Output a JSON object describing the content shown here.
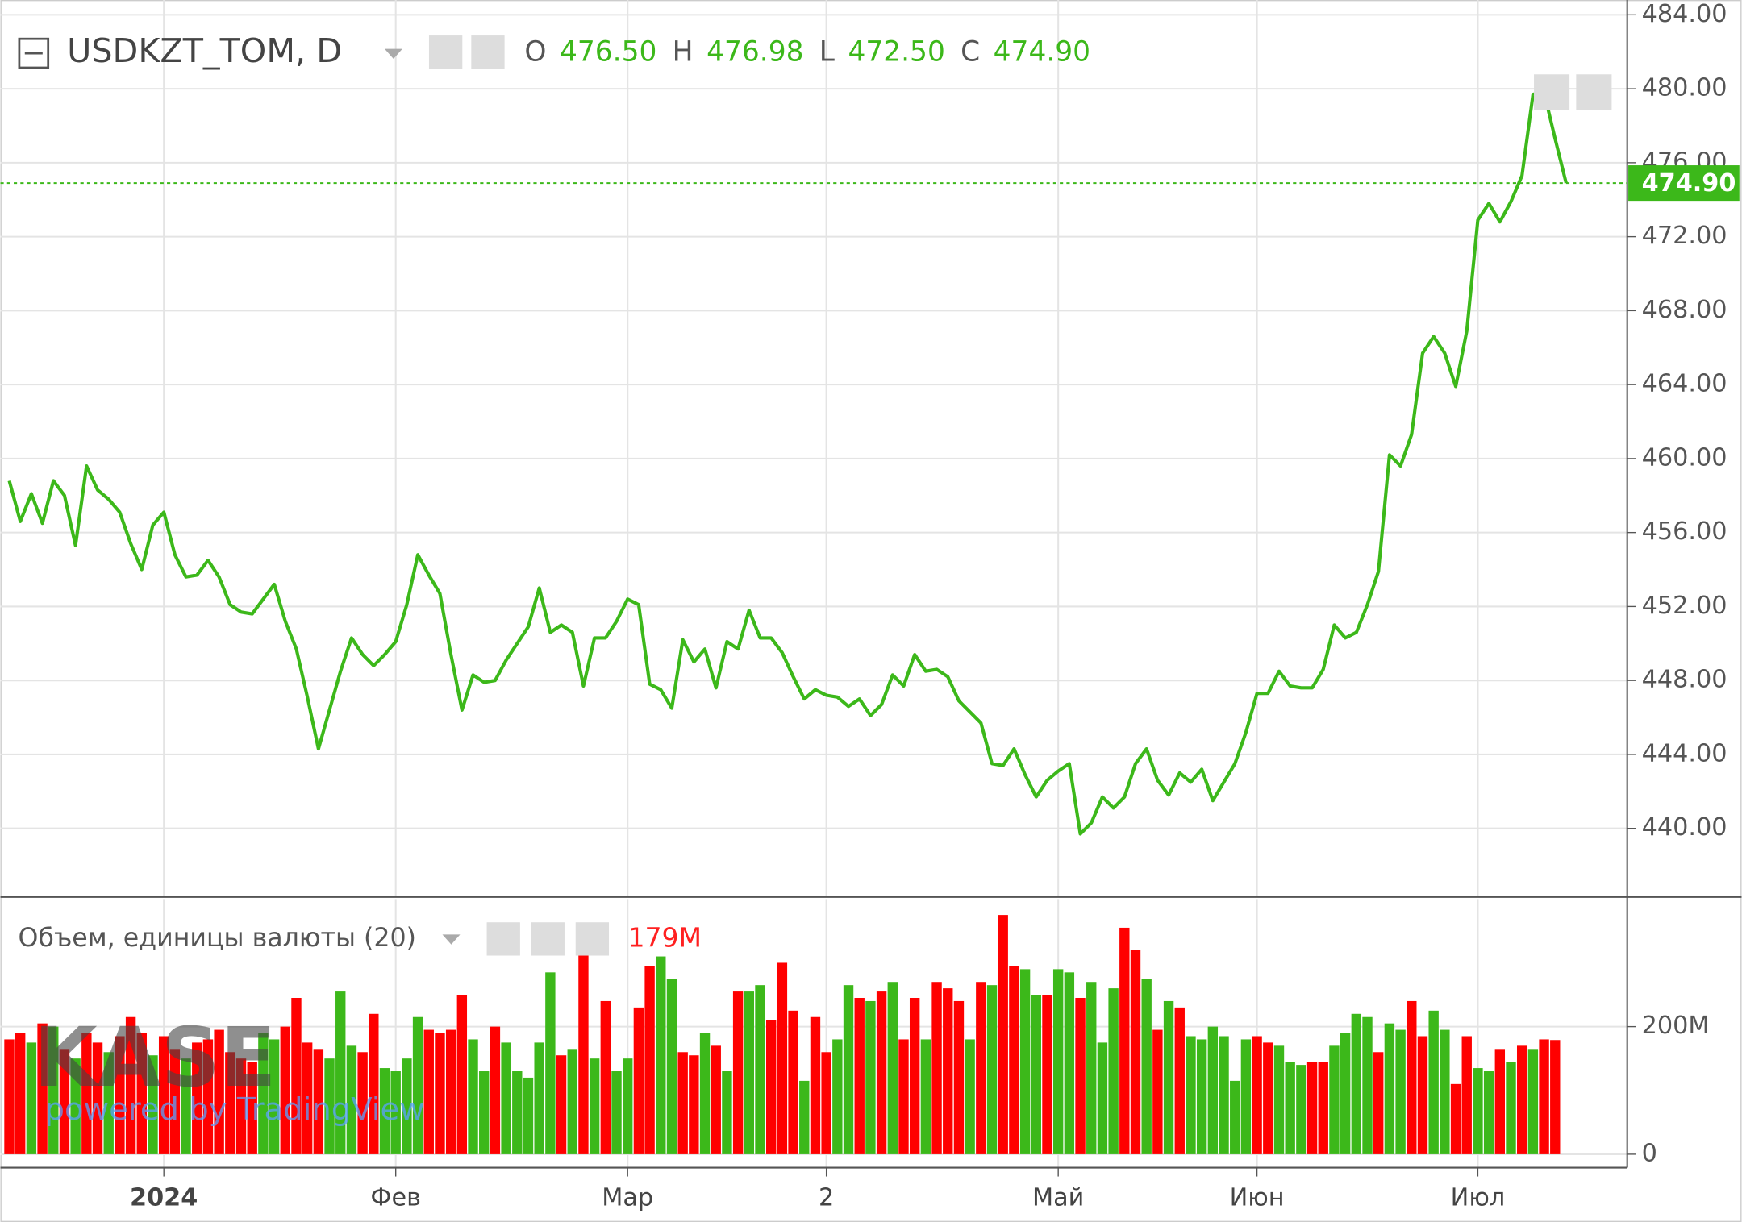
{
  "chart_data": [
    {
      "type": "line",
      "symbol": "USDKZT_TOM, D",
      "ohlc": [
        {
          "label": "O",
          "value": "476.50"
        },
        {
          "label": "H",
          "value": "476.98"
        },
        {
          "label": "L",
          "value": "472.50"
        },
        {
          "label": "C",
          "value": "474.90"
        }
      ],
      "last_price": {
        "value": 474.9,
        "label": "474.90"
      },
      "categories": [
        null,
        null,
        null,
        null,
        null,
        null,
        null,
        null,
        null,
        null,
        null,
        null,
        null,
        null,
        "2024",
        null,
        null,
        null,
        null,
        null,
        null,
        null,
        null,
        null,
        null,
        null,
        null,
        null,
        null,
        null,
        null,
        null,
        null,
        null,
        null,
        "Фев",
        null,
        null,
        null,
        null,
        null,
        null,
        null,
        null,
        null,
        null,
        null,
        null,
        null,
        null,
        null,
        null,
        null,
        null,
        null,
        null,
        "Мар",
        null,
        null,
        null,
        null,
        null,
        null,
        null,
        null,
        null,
        null,
        null,
        null,
        null,
        null,
        null,
        null,
        null,
        "2",
        null,
        null,
        null,
        null,
        null,
        null,
        null,
        null,
        null,
        null,
        null,
        null,
        null,
        null,
        null,
        null,
        null,
        null,
        null,
        null,
        "Май",
        null,
        null,
        null,
        null,
        null,
        null,
        null,
        null,
        null,
        null,
        null,
        null,
        null,
        null,
        null,
        null,
        null,
        "Июн",
        null,
        null,
        null,
        null,
        null,
        null,
        null,
        null,
        null,
        null,
        null,
        null,
        null,
        null,
        null,
        null,
        null,
        null,
        null,
        "Июл",
        null,
        null,
        null,
        null,
        null,
        null,
        null,
        null
      ],
      "series": [
        {
          "name": "USDKZT_TOM",
          "color": "#3cb81a",
          "values": [
            458.8,
            456.6,
            458.1,
            456.5,
            458.8,
            458.0,
            455.3,
            459.6,
            458.3,
            457.8,
            457.1,
            455.4,
            454.0,
            456.4,
            457.1,
            454.8,
            453.6,
            453.7,
            454.5,
            453.6,
            452.1,
            451.7,
            451.6,
            452.4,
            453.2,
            451.2,
            449.7,
            447.1,
            444.3,
            446.4,
            448.5,
            450.3,
            449.4,
            448.8,
            449.4,
            450.1,
            452.1,
            454.8,
            453.7,
            452.7,
            449.4,
            446.4,
            448.3,
            447.9,
            448.0,
            449.1,
            450.0,
            450.9,
            453.0,
            450.6,
            451.0,
            450.6,
            447.7,
            450.3,
            450.3,
            451.2,
            452.4,
            452.1,
            447.8,
            447.5,
            446.5,
            450.2,
            449.0,
            449.7,
            447.6,
            450.1,
            449.7,
            451.8,
            450.3,
            450.3,
            449.5,
            448.2,
            447.0,
            447.5,
            447.2,
            447.1,
            446.6,
            447.0,
            446.1,
            446.7,
            448.3,
            447.7,
            449.4,
            448.5,
            448.6,
            448.2,
            446.9,
            446.3,
            445.7,
            443.5,
            443.4,
            444.3,
            442.9,
            441.7,
            442.6,
            443.1,
            443.5,
            439.7,
            440.3,
            441.7,
            441.1,
            441.7,
            443.5,
            444.3,
            442.6,
            441.8,
            443.0,
            442.5,
            443.2,
            441.5,
            442.5,
            443.5,
            445.2,
            447.3,
            447.3,
            448.5,
            447.7,
            447.6,
            447.6,
            448.6,
            451.0,
            450.3,
            450.6,
            452.1,
            453.9,
            460.2,
            459.6,
            461.3,
            465.7,
            466.6,
            465.7,
            463.9,
            466.9,
            472.9,
            473.8,
            472.8,
            473.9,
            475.3,
            479.7,
            479.8,
            477.3,
            474.9
          ]
        }
      ],
      "ylim": [
        436.3,
        484.8
      ],
      "yticks": [
        {
          "value": 440,
          "label": "440.00"
        },
        {
          "value": 444,
          "label": "444.00"
        },
        {
          "value": 448,
          "label": "448.00"
        },
        {
          "value": 452,
          "label": "452.00"
        },
        {
          "value": 456,
          "label": "456.00"
        },
        {
          "value": 460,
          "label": "460.00"
        },
        {
          "value": 464,
          "label": "464.00"
        },
        {
          "value": 468,
          "label": "468.00"
        },
        {
          "value": 472,
          "label": "472.00"
        },
        {
          "value": 476,
          "label": "476.00"
        },
        {
          "value": 480,
          "label": "480.00"
        },
        {
          "value": 484,
          "label": "484.00"
        }
      ],
      "grid": true
    },
    {
      "type": "bar",
      "legend": "Объем, единицы валюты (20)",
      "last_volume": {
        "value": 179000000,
        "label": "179M"
      },
      "watermark": "KASE",
      "watermark_sub": "powered by TradingView",
      "series": [
        {
          "name": "Объем",
          "values": [
            180000000,
            190000000,
            175000000,
            205000000,
            200000000,
            165000000,
            150000000,
            190000000,
            175000000,
            160000000,
            185000000,
            215000000,
            190000000,
            155000000,
            185000000,
            165000000,
            150000000,
            175000000,
            180000000,
            195000000,
            160000000,
            150000000,
            145000000,
            190000000,
            180000000,
            200000000,
            245000000,
            175000000,
            165000000,
            150000000,
            255000000,
            170000000,
            160000000,
            220000000,
            135000000,
            130000000,
            150000000,
            215000000,
            195000000,
            190000000,
            195000000,
            250000000,
            180000000,
            130000000,
            200000000,
            175000000,
            130000000,
            120000000,
            175000000,
            285000000,
            155000000,
            165000000,
            330000000,
            150000000,
            240000000,
            130000000,
            150000000,
            230000000,
            295000000,
            310000000,
            275000000,
            160000000,
            155000000,
            190000000,
            170000000,
            130000000,
            255000000,
            255000000,
            265000000,
            210000000,
            300000000,
            225000000,
            115000000,
            215000000,
            160000000,
            180000000,
            265000000,
            245000000,
            240000000,
            255000000,
            270000000,
            180000000,
            245000000,
            180000000,
            270000000,
            260000000,
            240000000,
            180000000,
            270000000,
            265000000,
            375000000,
            295000000,
            290000000,
            250000000,
            250000000,
            290000000,
            285000000,
            245000000,
            270000000,
            175000000,
            260000000,
            355000000,
            320000000,
            275000000,
            195000000,
            240000000,
            230000000,
            185000000,
            180000000,
            200000000,
            185000000,
            115000000,
            180000000,
            185000000,
            175000000,
            170000000,
            145000000,
            140000000,
            145000000,
            145000000,
            170000000,
            190000000,
            220000000,
            215000000,
            160000000,
            205000000,
            195000000,
            240000000,
            185000000,
            225000000,
            195000000,
            110000000,
            185000000,
            135000000,
            130000000,
            165000000,
            145000000,
            170000000,
            165000000,
            180000000,
            179000000
          ],
          "colors": [
            "#ff0000",
            "#ff0000",
            "#3cb81a",
            "#ff0000",
            "#3cb81a",
            "#ff0000",
            "#3cb81a",
            "#ff0000",
            "#ff0000",
            "#3cb81a",
            "#ff0000",
            "#ff0000",
            "#ff0000",
            "#3cb81a",
            "#ff0000",
            "#ff0000",
            "#3cb81a",
            "#ff0000",
            "#ff0000",
            "#ff0000",
            "#ff0000",
            "#ff0000",
            "#ff0000",
            "#3cb81a",
            "#3cb81a",
            "#ff0000",
            "#ff0000",
            "#ff0000",
            "#ff0000",
            "#3cb81a",
            "#3cb81a",
            "#3cb81a",
            "#ff0000",
            "#ff0000",
            "#3cb81a",
            "#3cb81a",
            "#3cb81a",
            "#3cb81a",
            "#ff0000",
            "#ff0000",
            "#ff0000",
            "#ff0000",
            "#3cb81a",
            "#3cb81a",
            "#ff0000",
            "#3cb81a",
            "#3cb81a",
            "#3cb81a",
            "#3cb81a",
            "#3cb81a",
            "#ff0000",
            "#3cb81a",
            "#ff0000",
            "#3cb81a",
            "#ff0000",
            "#3cb81a",
            "#3cb81a",
            "#ff0000",
            "#ff0000",
            "#3cb81a",
            "#3cb81a",
            "#ff0000",
            "#ff0000",
            "#3cb81a",
            "#ff0000",
            "#3cb81a",
            "#ff0000",
            "#3cb81a",
            "#3cb81a",
            "#ff0000",
            "#ff0000",
            "#ff0000",
            "#3cb81a",
            "#ff0000",
            "#ff0000",
            "#3cb81a",
            "#3cb81a",
            "#ff0000",
            "#3cb81a",
            "#ff0000",
            "#3cb81a",
            "#ff0000",
            "#ff0000",
            "#3cb81a",
            "#ff0000",
            "#ff0000",
            "#ff0000",
            "#3cb81a",
            "#ff0000",
            "#3cb81a",
            "#ff0000",
            "#ff0000",
            "#3cb81a",
            "#3cb81a",
            "#ff0000",
            "#3cb81a",
            "#3cb81a",
            "#ff0000",
            "#3cb81a",
            "#3cb81a",
            "#3cb81a",
            "#ff0000",
            "#ff0000",
            "#3cb81a",
            "#ff0000",
            "#3cb81a",
            "#ff0000",
            "#3cb81a",
            "#3cb81a",
            "#3cb81a",
            "#3cb81a",
            "#3cb81a",
            "#3cb81a",
            "#ff0000",
            "#ff0000",
            "#3cb81a",
            "#3cb81a",
            "#3cb81a",
            "#ff0000",
            "#ff0000",
            "#3cb81a",
            "#3cb81a",
            "#3cb81a",
            "#3cb81a",
            "#ff0000",
            "#3cb81a",
            "#3cb81a",
            "#ff0000",
            "#ff0000",
            "#3cb81a",
            "#3cb81a",
            "#ff0000",
            "#ff0000",
            "#3cb81a",
            "#3cb81a",
            "#ff0000",
            "#3cb81a",
            "#ff0000",
            "#3cb81a",
            "#ff0000",
            "#ff0000"
          ]
        }
      ],
      "ylim": [
        -21000000,
        400000000
      ],
      "yticks": [
        0,
        {
          "value": 200000000,
          "label": "200M"
        }
      ],
      "grid": true
    }
  ]
}
